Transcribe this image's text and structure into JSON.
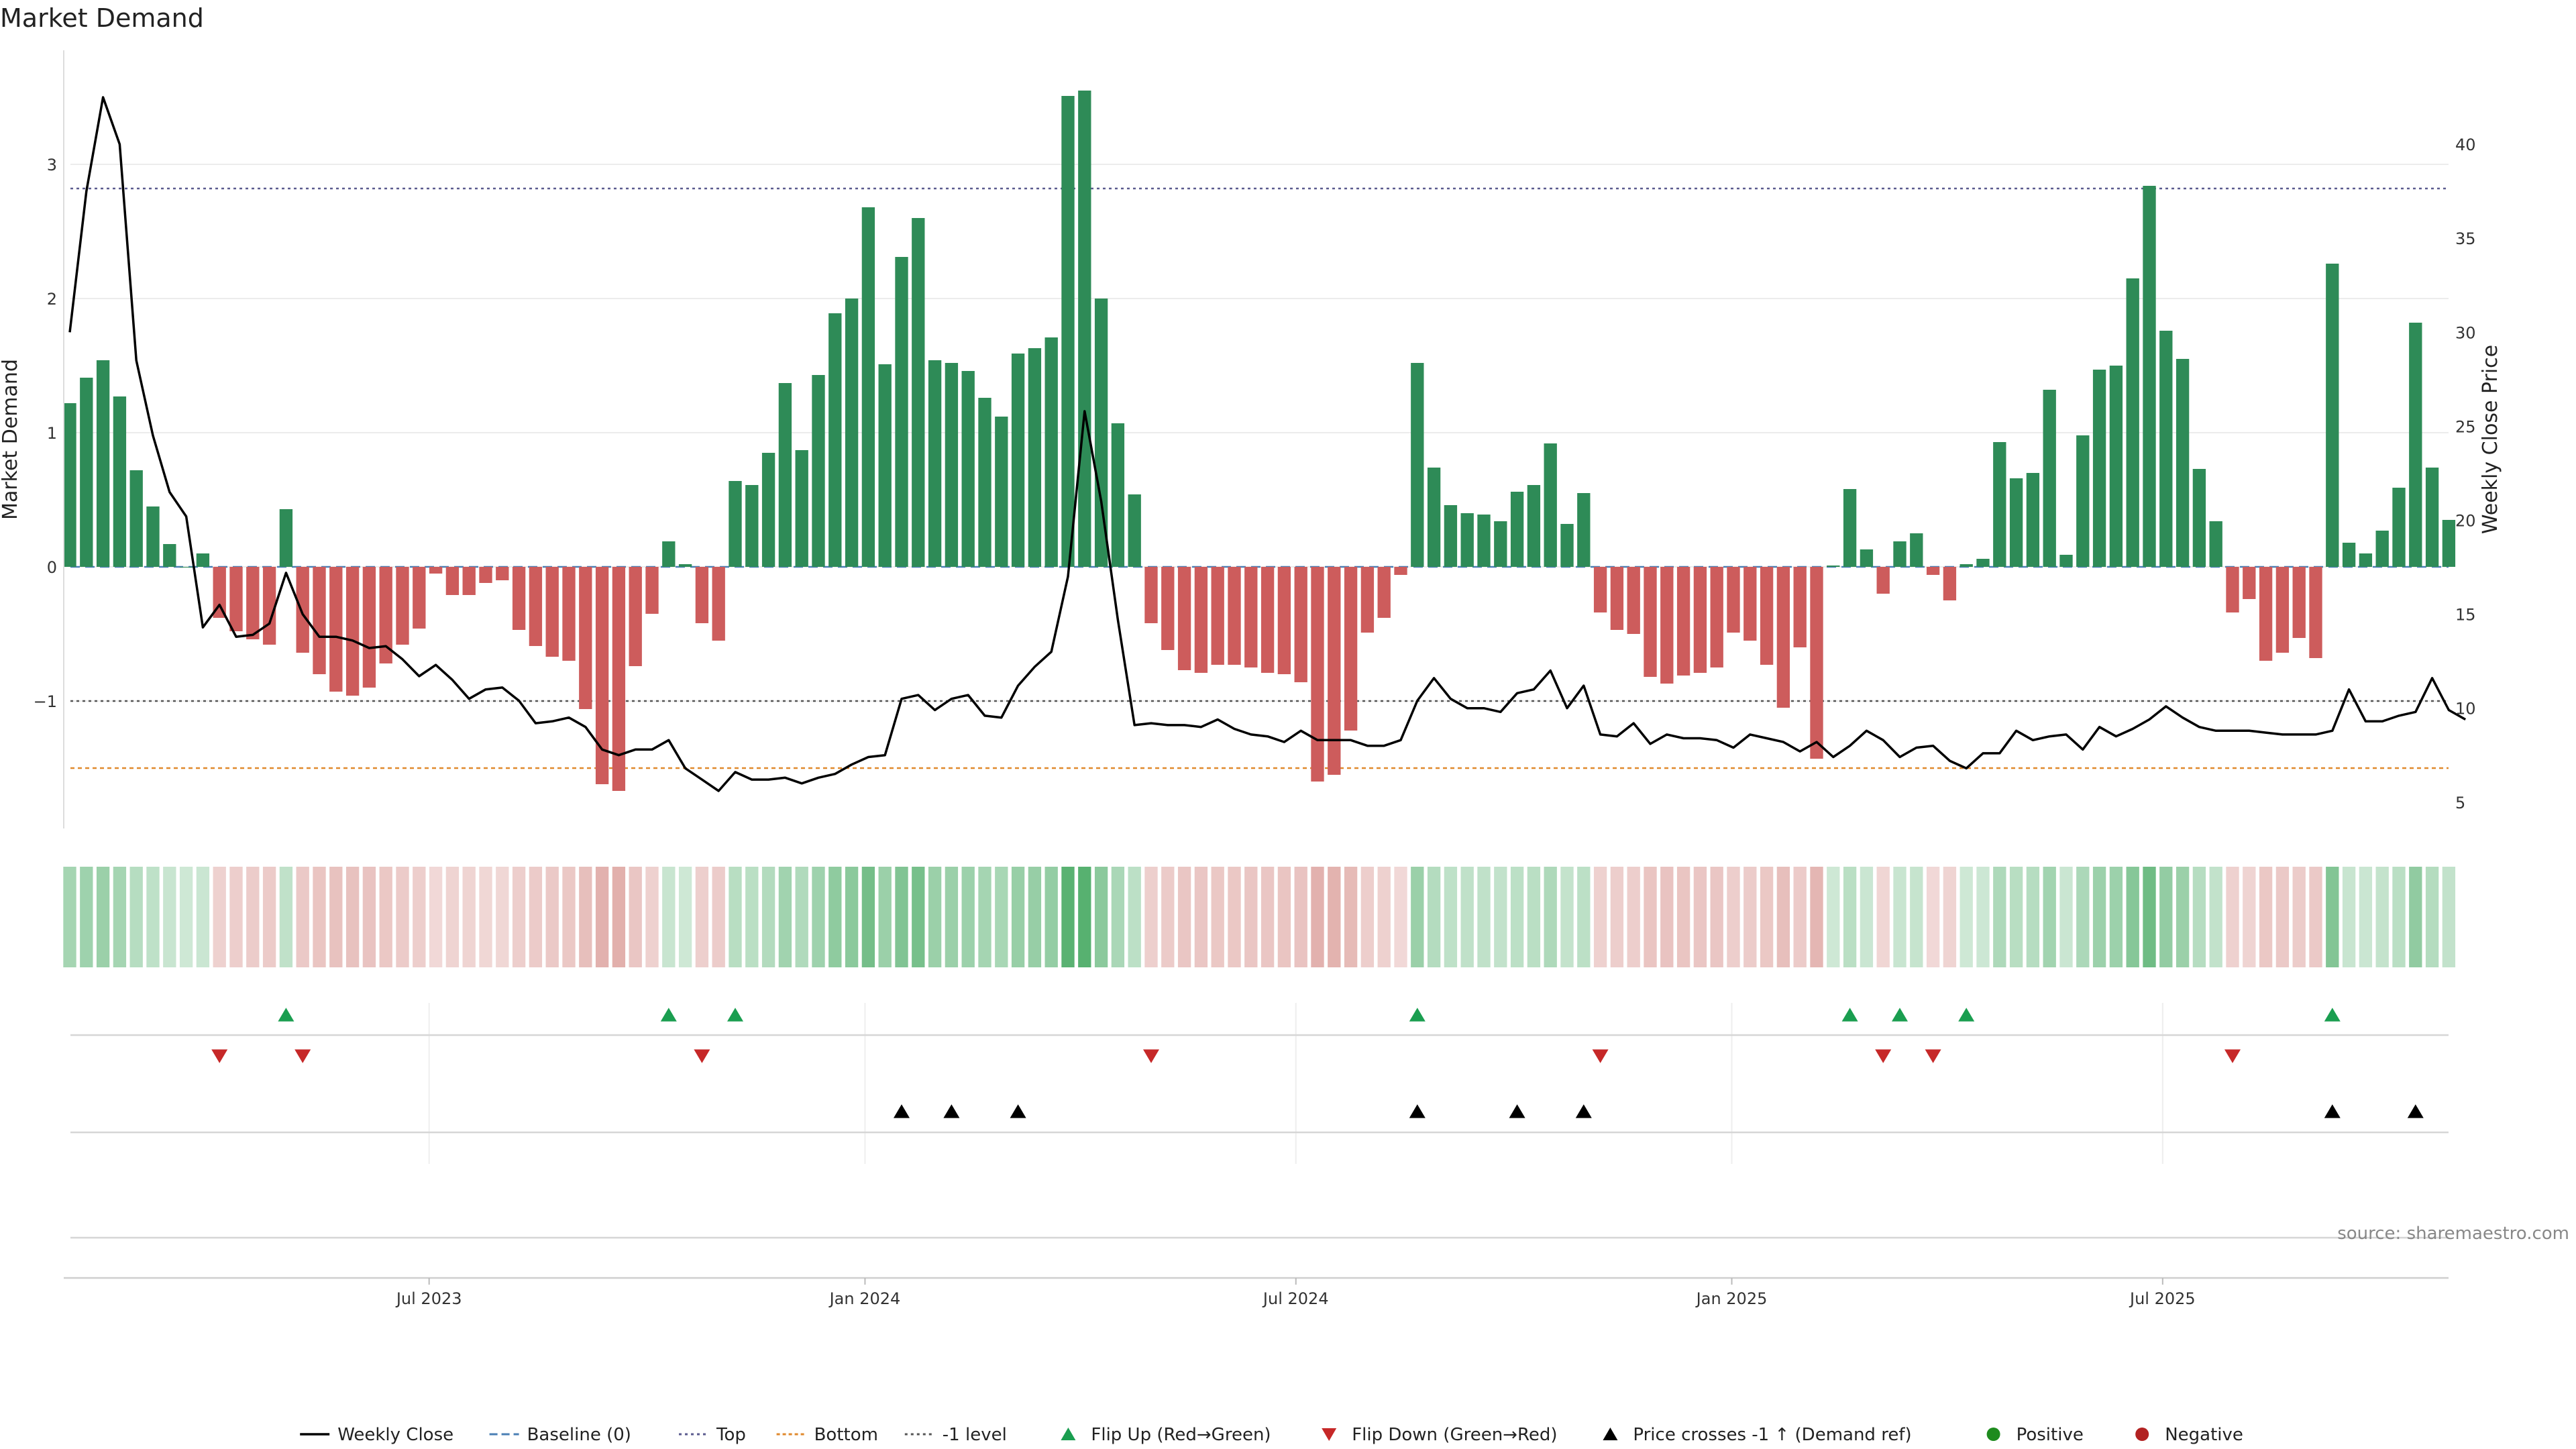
{
  "chart_data": {
    "type": "bar",
    "title": "Market Demand",
    "ylabel": "Market Demand",
    "y2label": "Weekly Close Price",
    "ylim": [
      -1.95,
      3.85
    ],
    "y2lim": [
      3.6,
      45.0
    ],
    "yticks": [
      3,
      2,
      1,
      0,
      -1
    ],
    "yticklabels": [
      "3",
      "2",
      "1",
      "0",
      "−1"
    ],
    "y2ticks": [
      40,
      35,
      30,
      25,
      20,
      15,
      10,
      5
    ],
    "y2ticklabels": [
      "40",
      "35",
      "30",
      "25",
      "20",
      "15",
      "10",
      "5"
    ],
    "xticks": [
      {
        "label": "Jul 2023",
        "index": 21.6
      },
      {
        "label": "Jan 2024",
        "index": 47.8
      },
      {
        "label": "Jul 2024",
        "index": 73.7
      },
      {
        "label": "Jan 2025",
        "index": 99.9
      },
      {
        "label": "Jul 2025",
        "index": 125.8
      }
    ],
    "reference_lines": [
      {
        "name": "Top",
        "value": 2.82,
        "color": "#5b5b8f"
      },
      {
        "name": "-1 level",
        "value": -1.0,
        "color": "#555555"
      },
      {
        "name": "Bottom",
        "value": -1.5,
        "color": "#e08a2e"
      }
    ],
    "demand": [
      1.22,
      1.41,
      1.54,
      1.27,
      0.72,
      0.45,
      0.17,
      0.0,
      0.1,
      -0.38,
      -0.48,
      -0.54,
      -0.58,
      0.43,
      -0.64,
      -0.8,
      -0.93,
      -0.96,
      -0.9,
      -0.72,
      -0.58,
      -0.46,
      -0.05,
      -0.21,
      -0.21,
      -0.12,
      -0.1,
      -0.47,
      -0.59,
      -0.67,
      -0.7,
      -1.06,
      -1.62,
      -1.67,
      -0.74,
      -0.35,
      0.19,
      0.02,
      -0.42,
      -0.55,
      0.64,
      0.61,
      0.85,
      1.37,
      0.87,
      1.43,
      1.89,
      2.0,
      2.68,
      1.51,
      2.31,
      2.6,
      1.54,
      1.52,
      1.46,
      1.26,
      1.12,
      1.59,
      1.63,
      1.71,
      3.51,
      3.55,
      2.0,
      1.07,
      0.54,
      -0.42,
      -0.62,
      -0.77,
      -0.79,
      -0.73,
      -0.73,
      -0.75,
      -0.79,
      -0.8,
      -0.86,
      -1.6,
      -1.55,
      -1.22,
      -0.49,
      -0.38,
      -0.06,
      1.52,
      0.74,
      0.46,
      0.4,
      0.39,
      0.34,
      0.56,
      0.61,
      0.92,
      0.32,
      0.55,
      -0.34,
      -0.47,
      -0.5,
      -0.82,
      -0.87,
      -0.81,
      -0.79,
      -0.75,
      -0.49,
      -0.55,
      -0.73,
      -1.05,
      -0.6,
      -1.43,
      0.01,
      0.58,
      0.13,
      -0.2,
      0.19,
      0.25,
      -0.06,
      -0.25,
      0.02,
      0.06,
      0.93,
      0.66,
      0.7,
      1.32,
      0.09,
      0.98,
      1.47,
      1.5,
      2.15,
      2.84,
      1.76,
      1.55,
      0.73,
      0.34,
      -0.34,
      -0.24,
      -0.7,
      -0.64,
      -0.53,
      -0.68,
      2.26,
      0.18,
      0.1,
      0.27,
      0.59,
      1.82,
      0.74,
      0.35
    ],
    "weekly_close": [
      30.0,
      37.5,
      42.5,
      40.0,
      28.5,
      24.5,
      21.5,
      20.2,
      14.3,
      15.5,
      13.8,
      13.9,
      14.5,
      17.2,
      15.0,
      13.8,
      13.8,
      13.6,
      13.2,
      13.3,
      12.6,
      11.7,
      12.3,
      11.5,
      10.5,
      11.0,
      11.1,
      10.4,
      9.2,
      9.3,
      9.5,
      9.0,
      7.8,
      7.5,
      7.8,
      7.8,
      8.3,
      6.8,
      6.2,
      5.6,
      6.6,
      6.2,
      6.2,
      6.3,
      6.0,
      6.3,
      6.5,
      7.0,
      7.4,
      7.5,
      10.5,
      10.7,
      9.9,
      10.5,
      10.7,
      9.6,
      9.5,
      11.2,
      12.2,
      13.0,
      17.0,
      25.8,
      21.0,
      14.7,
      9.1,
      9.2,
      9.1,
      9.1,
      9.0,
      9.4,
      8.9,
      8.6,
      8.5,
      8.2,
      8.8,
      8.3,
      8.3,
      8.3,
      8.0,
      8.0,
      8.3,
      10.4,
      11.6,
      10.5,
      10.0,
      10.0,
      9.8,
      10.8,
      11.0,
      12.0,
      10.0,
      11.2,
      8.6,
      8.5,
      9.2,
      8.1,
      8.6,
      8.4,
      8.4,
      8.3,
      7.9,
      8.6,
      8.4,
      8.2,
      7.7,
      8.2,
      7.4,
      8.0,
      8.8,
      8.3,
      7.4,
      7.9,
      8.0,
      7.2,
      6.8,
      7.6,
      7.6,
      8.8,
      8.3,
      8.5,
      8.6,
      7.8,
      9.0,
      8.5,
      8.9,
      9.4,
      10.1,
      9.5,
      9.0,
      8.8,
      8.8,
      8.8,
      8.7,
      8.6,
      8.6,
      8.6,
      8.8,
      11.0,
      9.3,
      9.3,
      9.6,
      9.8,
      11.6,
      9.9,
      9.4
    ],
    "flip_up": [
      13,
      36,
      40,
      81,
      107,
      110,
      114,
      136
    ],
    "flip_down": [
      9,
      14,
      38,
      65,
      92,
      109,
      112,
      130
    ],
    "price_cross_up": [
      50,
      53,
      57,
      81,
      87,
      91,
      136,
      141
    ],
    "legend": [
      {
        "label": "Weekly Close",
        "kind": "line-solid"
      },
      {
        "label": "Baseline (0)",
        "kind": "line-dash"
      },
      {
        "label": "Top",
        "kind": "line-dot-blue"
      },
      {
        "label": "Bottom",
        "kind": "line-dot-orange"
      },
      {
        "label": "-1 level",
        "kind": "line-dot-gray"
      },
      {
        "label": "Flip Up (Red→Green)",
        "kind": "tri-up-green"
      },
      {
        "label": "Flip Down (Green→Red)",
        "kind": "tri-down-red"
      },
      {
        "label": "Price crosses -1 ↑ (Demand ref)",
        "kind": "tri-up-black"
      },
      {
        "label": "Positive",
        "kind": "dot-green"
      },
      {
        "label": "Negative",
        "kind": "dot-red"
      }
    ],
    "source": "source: sharemaestro.com"
  },
  "colors": {
    "positive_bar": "#2e8b57",
    "negative_bar": "#cd5c5c",
    "price_line": "#000000",
    "flip_up": "#1a9e50",
    "flip_down": "#c62828",
    "cross_up": "#000000",
    "positive_dot": "#1e8b1e",
    "negative_dot": "#b22222"
  }
}
